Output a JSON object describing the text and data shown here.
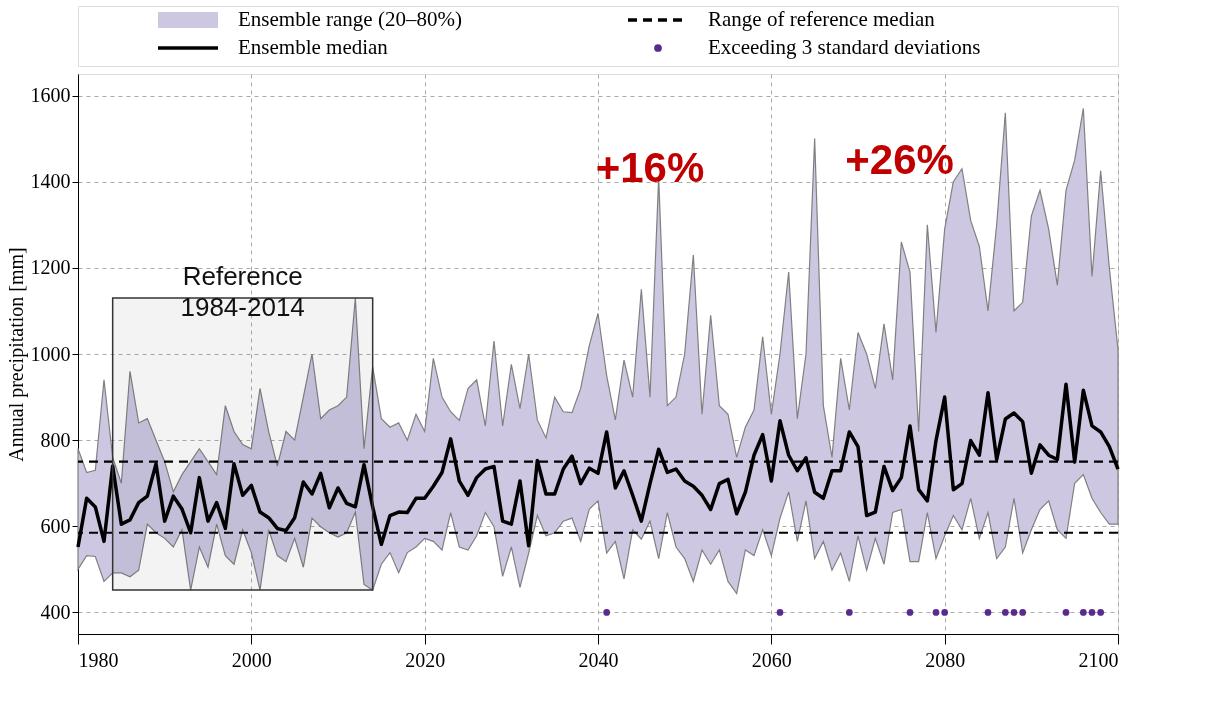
{
  "chart_data": {
    "type": "line",
    "ylabel": "Annual precipitation [mm]",
    "x": [
      1980,
      1981,
      1982,
      1983,
      1984,
      1985,
      1986,
      1987,
      1988,
      1989,
      1990,
      1991,
      1992,
      1993,
      1994,
      1995,
      1996,
      1997,
      1998,
      1999,
      2000,
      2001,
      2002,
      2003,
      2004,
      2005,
      2006,
      2007,
      2008,
      2009,
      2010,
      2011,
      2012,
      2013,
      2014,
      2015,
      2016,
      2017,
      2018,
      2019,
      2020,
      2021,
      2022,
      2023,
      2024,
      2025,
      2026,
      2027,
      2028,
      2029,
      2030,
      2031,
      2032,
      2033,
      2034,
      2035,
      2036,
      2037,
      2038,
      2039,
      2040,
      2041,
      2042,
      2043,
      2044,
      2045,
      2046,
      2047,
      2048,
      2049,
      2050,
      2051,
      2052,
      2053,
      2054,
      2055,
      2056,
      2057,
      2058,
      2059,
      2060,
      2061,
      2062,
      2063,
      2064,
      2065,
      2066,
      2067,
      2068,
      2069,
      2070,
      2071,
      2072,
      2073,
      2074,
      2075,
      2076,
      2077,
      2078,
      2079,
      2080,
      2081,
      2082,
      2083,
      2084,
      2085,
      2086,
      2087,
      2088,
      2089,
      2090,
      2091,
      2092,
      2093,
      2094,
      2095,
      2096,
      2097,
      2098,
      2099,
      2100
    ],
    "series": [
      {
        "name": "Ensemble median",
        "color": "#000000",
        "line_style": "solid",
        "lower": [
          500,
          532,
          530,
          472,
          492,
          492,
          483,
          498,
          605,
          585,
          572,
          552,
          592,
          452,
          552,
          505,
          605,
          532,
          512,
          592,
          539,
          452,
          592,
          532,
          518,
          572,
          505,
          619,
          599,
          585,
          575,
          585,
          633,
          465,
          452,
          512,
          539,
          492,
          539,
          552,
          572,
          565,
          545,
          632,
          552,
          545,
          578,
          632,
          599,
          484,
          552,
          458,
          538,
          625,
          578,
          585,
          612,
          619,
          565,
          640,
          659,
          538,
          565,
          478,
          592,
          570,
          612,
          525,
          632,
          552,
          525,
          472,
          545,
          512,
          545,
          472,
          444,
          545,
          532,
          592,
          532,
          619,
          680,
          565,
          659,
          525,
          565,
          498,
          538,
          472,
          578,
          498,
          572,
          512,
          632,
          639,
          518,
          518,
          632,
          525,
          578,
          625,
          592,
          665,
          572,
          632,
          525,
          552,
          665,
          538,
          592,
          639,
          659,
          592,
          572,
          700,
          720,
          665,
          632,
          605,
          605
        ],
        "upper": [
          780,
          725,
          730,
          940,
          760,
          700,
          960,
          840,
          850,
          800,
          750,
          680,
          720,
          750,
          780,
          750,
          720,
          880,
          820,
          790,
          780,
          920,
          820,
          740,
          820,
          800,
          900,
          1000,
          850,
          870,
          880,
          900,
          1130,
          780,
          970,
          850,
          830,
          840,
          800,
          860,
          820,
          990,
          900,
          866,
          846,
          920,
          940,
          833,
          1030,
          833,
          976,
          873,
          1000,
          847,
          805,
          900,
          866,
          864,
          920,
          1020,
          1094,
          950,
          847,
          986,
          900,
          1150,
          900,
          1410,
          880,
          900,
          1000,
          1230,
          860,
          1090,
          880,
          860,
          760,
          830,
          870,
          1040,
          860,
          1000,
          1190,
          850,
          1000,
          1500,
          880,
          760,
          990,
          870,
          1050,
          1000,
          920,
          1070,
          940,
          1260,
          1190,
          820,
          1300,
          1050,
          1290,
          1400,
          1430,
          1310,
          1250,
          1100,
          1300,
          1560,
          1100,
          1120,
          1320,
          1380,
          1290,
          1160,
          1380,
          1450,
          1570,
          1180,
          1425,
          1200,
          1010
        ],
        "values": [
          552,
          665,
          645,
          565,
          740,
          605,
          615,
          655,
          670,
          745,
          612,
          670,
          640,
          585,
          713,
          612,
          655,
          595,
          745,
          672,
          695,
          633,
          620,
          595,
          590,
          620,
          703,
          675,
          723,
          643,
          689,
          653,
          645,
          743,
          645,
          558,
          625,
          633,
          632,
          665,
          665,
          693,
          725,
          803,
          705,
          672,
          713,
          733,
          739,
          612,
          605,
          705,
          555,
          753,
          675,
          675,
          733,
          763,
          699,
          735,
          723,
          819,
          689,
          729,
          672,
          612,
          699,
          779,
          725,
          733,
          705,
          693,
          672,
          639,
          699,
          709,
          629,
          679,
          765,
          813,
          705,
          845,
          765,
          729,
          759,
          679,
          665,
          729,
          729,
          819,
          785,
          625,
          633,
          739,
          683,
          713,
          833,
          685,
          659,
          799,
          900,
          685,
          699,
          799,
          765,
          910,
          755,
          849,
          863,
          843,
          723,
          789,
          765,
          755,
          930,
          749,
          916,
          833,
          819,
          785,
          733
        ]
      },
      {
        "name": "Exceeding 3 standard deviations",
        "type": "scatter",
        "color": "#5b2a8f",
        "marker": "circle",
        "x": [
          2041,
          2061,
          2069,
          2076,
          2079,
          2080,
          2085,
          2087,
          2088,
          2089,
          2094,
          2096,
          2097,
          2098
        ],
        "values": [
          400,
          400,
          400,
          400,
          400,
          400,
          400,
          400,
          400,
          400,
          400,
          400,
          400,
          400
        ]
      }
    ],
    "ref_lines": [
      {
        "axis": "y",
        "value": 750,
        "label": "Range of reference median",
        "color": "#000000",
        "line_style": "dashed"
      },
      {
        "axis": "y",
        "value": 585,
        "label": null,
        "color": "#000000",
        "line_style": "dashed"
      }
    ],
    "bands": [
      {
        "axis": "x",
        "from": 1984,
        "to": 2014,
        "label": "Reference\n1984-2014",
        "color": "#333333"
      }
    ],
    "annotations": [
      "Ensemble range (20–80%)",
      "+16%",
      "+26%"
    ],
    "xlim": [
      1980,
      2100
    ],
    "ylim": [
      350,
      1650
    ],
    "xticks": [
      1980,
      2000,
      2020,
      2040,
      2060,
      2080,
      2100
    ],
    "yticks": [
      400,
      600,
      800,
      1000,
      1200,
      1400,
      1600
    ],
    "grid": true,
    "legend": "top"
  }
}
